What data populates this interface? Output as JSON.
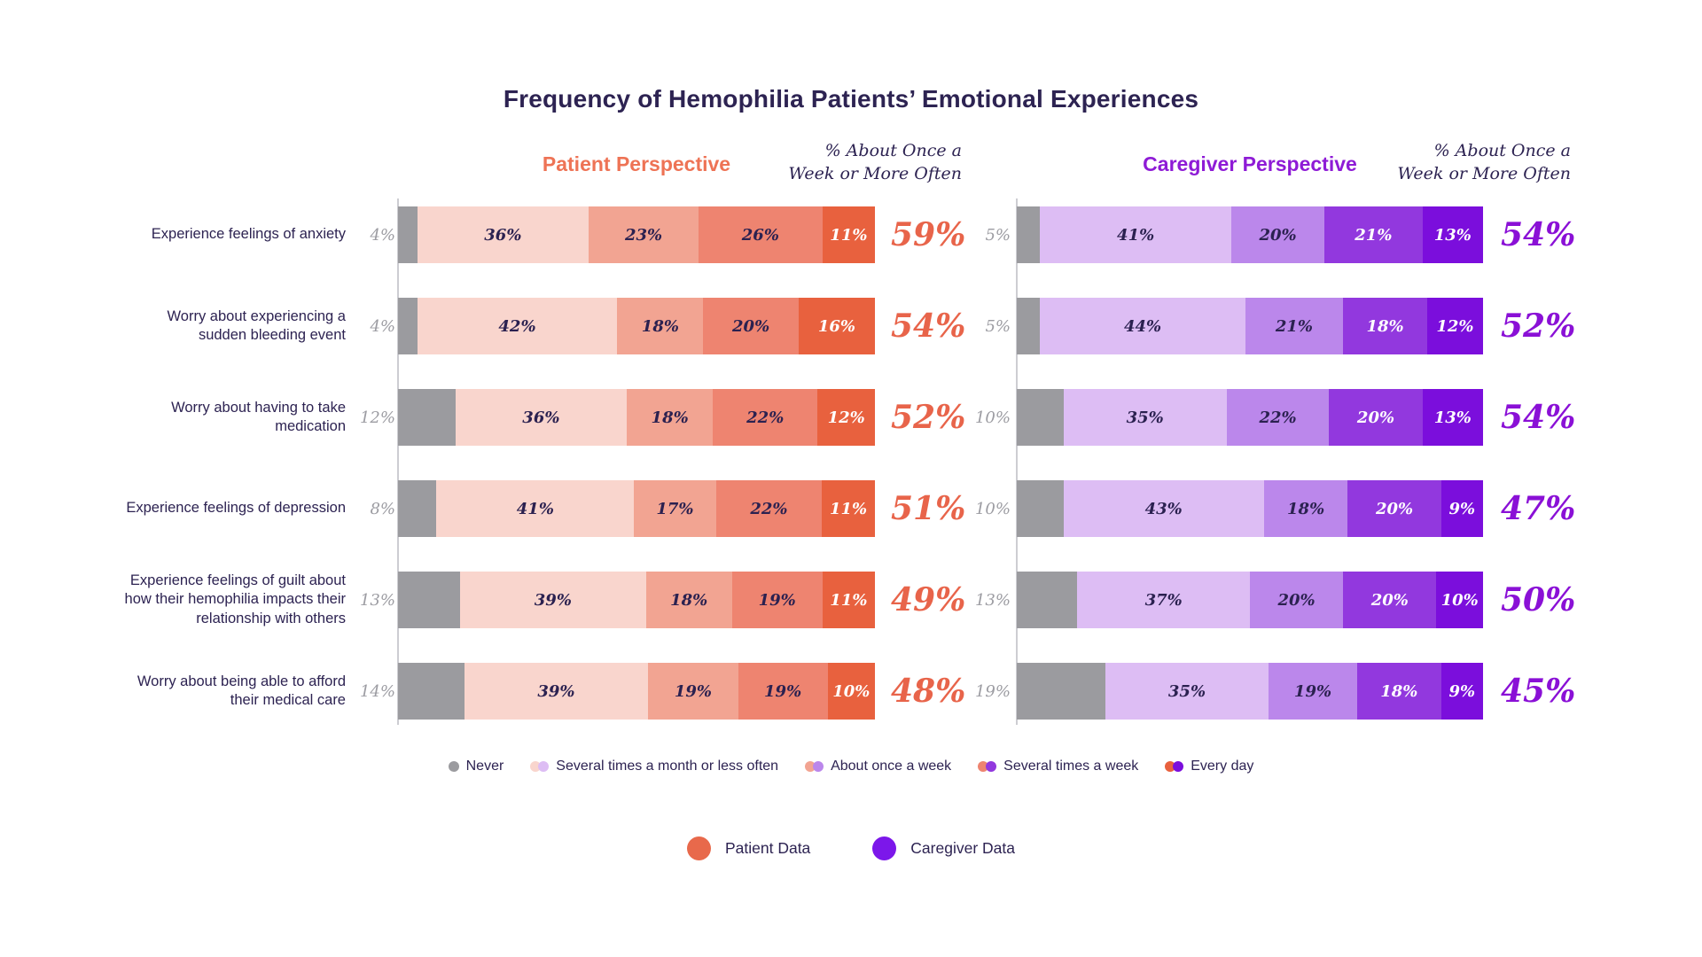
{
  "title": "Frequency of Hemophilia Patients’ Emotional Experiences",
  "patient_panel": {
    "header": "Patient Perspective",
    "subheader_line1": "% About Once a",
    "subheader_line2": "Week or More Often",
    "accent": "#EE7355",
    "total_color": "#E8644A"
  },
  "caregiver_panel": {
    "header": "Caregiver Perspective",
    "subheader_line1": "% About Once a",
    "subheader_line2": "Week or More Often",
    "accent": "#8E1BD6",
    "total_color": "#8A10D6"
  },
  "chart_data": {
    "type": "bar",
    "stacked": true,
    "orientation": "horizontal",
    "units": "percent",
    "levels": [
      "Never",
      "Several times a month or less often",
      "About once a week",
      "Several times a week",
      "Every day"
    ],
    "patient_colors": [
      "#9B9B9F",
      "#F9D5CD",
      "#F2A492",
      "#EE8470",
      "#E8613E"
    ],
    "caregiver_colors": [
      "#9B9B9F",
      "#DDBDF4",
      "#BB87EB",
      "#9238DE",
      "#7B0EDC"
    ],
    "rows": [
      {
        "label": "Experience feelings of anxiety",
        "patient": [
          4,
          36,
          23,
          26,
          11
        ],
        "patient_total": "59%",
        "caregiver": [
          5,
          41,
          20,
          21,
          13
        ],
        "caregiver_total": "54%"
      },
      {
        "label": "Worry about experiencing a sudden bleeding event",
        "patient": [
          4,
          42,
          18,
          20,
          16
        ],
        "patient_total": "54%",
        "caregiver": [
          5,
          44,
          21,
          18,
          12
        ],
        "caregiver_total": "52%"
      },
      {
        "label": "Worry about having to take medication",
        "patient": [
          12,
          36,
          18,
          22,
          12
        ],
        "patient_total": "52%",
        "caregiver": [
          10,
          35,
          22,
          20,
          13
        ],
        "caregiver_total": "54%"
      },
      {
        "label": "Experience feelings of depression",
        "patient": [
          8,
          41,
          17,
          22,
          11
        ],
        "patient_total": "51%",
        "caregiver": [
          10,
          43,
          18,
          20,
          9
        ],
        "caregiver_total": "47%"
      },
      {
        "label": "Experience feelings of guilt about how their hemophilia impacts their relationship with others",
        "patient": [
          13,
          39,
          18,
          19,
          11
        ],
        "patient_total": "49%",
        "caregiver": [
          13,
          37,
          20,
          20,
          10
        ],
        "caregiver_total": "50%"
      },
      {
        "label": "Worry about being able to afford their medical care",
        "patient": [
          14,
          39,
          19,
          19,
          10
        ],
        "patient_total": "48%",
        "caregiver": [
          19,
          35,
          19,
          18,
          9
        ],
        "caregiver_total": "45%"
      }
    ]
  },
  "frequency_legend": [
    {
      "label": "Never",
      "patient_color": "#9B9B9F",
      "caregiver_color": null
    },
    {
      "label": "Several times a month or less often",
      "patient_color": "#F9D5CD",
      "caregiver_color": "#DDBDF4"
    },
    {
      "label": "About once a week",
      "patient_color": "#F2A492",
      "caregiver_color": "#BB87EB"
    },
    {
      "label": "Several times a week",
      "patient_color": "#EE8470",
      "caregiver_color": "#9238DE"
    },
    {
      "label": "Every day",
      "patient_color": "#E8613E",
      "caregiver_color": "#7B0EDC"
    }
  ],
  "data_legend": [
    {
      "label": "Patient Data",
      "color": "#E8694B"
    },
    {
      "label": "Caregiver Data",
      "color": "#7C17EA"
    }
  ]
}
